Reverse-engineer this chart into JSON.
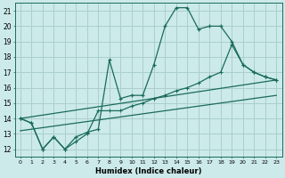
{
  "xlabel": "Humidex (Indice chaleur)",
  "bg_color": "#cceaea",
  "grid_color": "#aacece",
  "line_color": "#1a6b5a",
  "xlim": [
    -0.5,
    23.5
  ],
  "ylim": [
    11.5,
    21.5
  ],
  "xticks": [
    0,
    1,
    2,
    3,
    4,
    5,
    6,
    7,
    8,
    9,
    10,
    11,
    12,
    13,
    14,
    15,
    16,
    17,
    18,
    19,
    20,
    21,
    22,
    23
  ],
  "yticks": [
    12,
    13,
    14,
    15,
    16,
    17,
    18,
    19,
    20,
    21
  ],
  "series1_x": [
    0,
    1,
    2,
    3,
    4,
    5,
    6,
    7,
    8,
    9,
    10,
    11,
    12,
    13,
    14,
    15,
    16,
    17,
    18,
    19,
    20,
    21,
    22,
    23
  ],
  "series1_y": [
    14.0,
    13.7,
    12.0,
    12.8,
    12.0,
    12.8,
    13.1,
    13.3,
    17.8,
    15.3,
    15.5,
    15.5,
    17.5,
    20.0,
    21.2,
    21.2,
    19.8,
    20.0,
    20.0,
    19.0,
    17.5,
    17.0,
    16.7,
    16.5
  ],
  "series2_x": [
    0,
    1,
    2,
    3,
    4,
    5,
    6,
    7,
    8,
    9,
    10,
    11,
    12,
    13,
    14,
    15,
    16,
    17,
    18,
    19,
    20,
    21,
    22,
    23
  ],
  "series2_y": [
    14.0,
    13.7,
    12.0,
    12.8,
    12.0,
    12.5,
    13.0,
    14.5,
    14.5,
    14.5,
    14.8,
    15.0,
    15.3,
    15.5,
    15.8,
    16.0,
    16.3,
    16.7,
    17.0,
    18.8,
    17.5,
    17.0,
    16.7,
    16.5
  ],
  "series3_x": [
    0,
    23
  ],
  "series3_y": [
    14.0,
    16.5
  ],
  "series4_x": [
    0,
    23
  ],
  "series4_y": [
    13.2,
    15.5
  ]
}
